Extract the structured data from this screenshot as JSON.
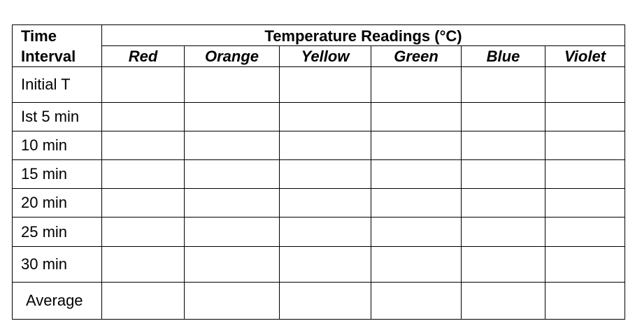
{
  "table": {
    "time_header_line1": "Time",
    "time_header_line2": "Interval",
    "group_header": "Temperature Readings (°C)",
    "color_columns": [
      "Red",
      "Orange",
      "Yellow",
      "Green",
      "Blue",
      "Violet"
    ],
    "rows": [
      {
        "label": "Initial T"
      },
      {
        "label": "Ist 5 min"
      },
      {
        "label": "10 min"
      },
      {
        "label": "15 min"
      },
      {
        "label": "20 min"
      },
      {
        "label": "25 min"
      },
      {
        "label": "30 min"
      },
      {
        "label": "Average"
      }
    ]
  }
}
